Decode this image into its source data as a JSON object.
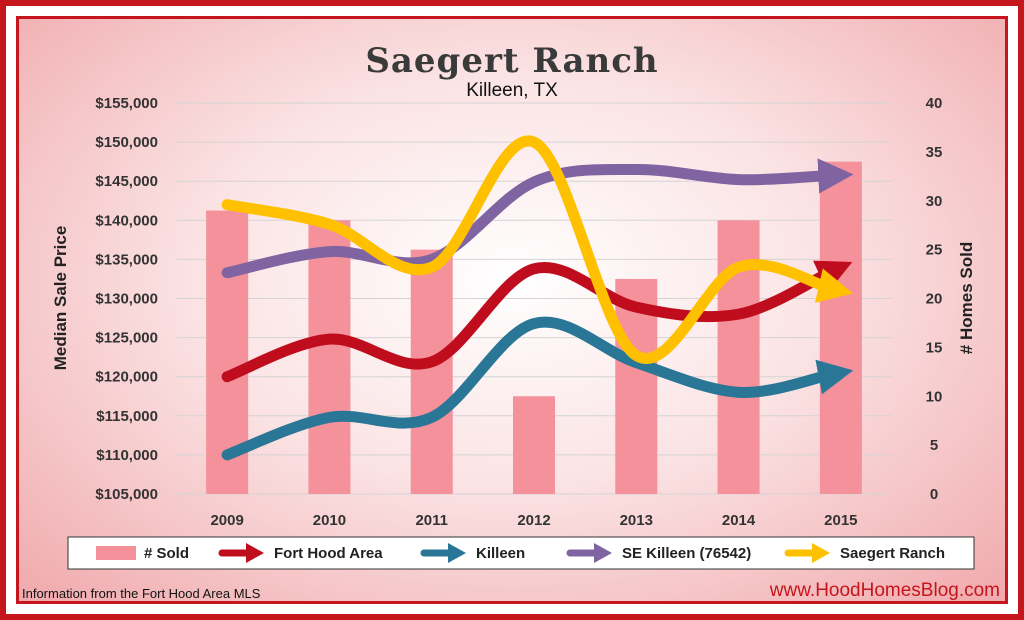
{
  "colors": {
    "sold": "#f4919a",
    "fort_hood": "#c00d1e",
    "killeen": "#2a7696",
    "se_killeen": "#8064a2",
    "saegert": "#ffc000",
    "border": "#c4161c"
  },
  "footer": {
    "source": "Information from the Fort Hood Area MLS",
    "site": "www.HoodHomesBlog.com"
  },
  "chart_data": {
    "type": "bar+line",
    "title": "Saegert Ranch",
    "subtitle": "Killeen, TX",
    "categories": [
      "2009",
      "2010",
      "2011",
      "2012",
      "2013",
      "2014",
      "2015"
    ],
    "ylabel": "Median Sale Price",
    "y2label": "# Homes Sold",
    "ylim": [
      105000,
      155000
    ],
    "y2lim": [
      0,
      40
    ],
    "yticks": [
      "$105,000",
      "$110,000",
      "$115,000",
      "$120,000",
      "$125,000",
      "$130,000",
      "$135,000",
      "$140,000",
      "$145,000",
      "$150,000",
      "$155,000"
    ],
    "y2ticks": [
      "0",
      "5",
      "10",
      "15",
      "20",
      "25",
      "30",
      "35",
      "40"
    ],
    "grid": true,
    "legend_position": "bottom",
    "bars": {
      "name": "# Sold",
      "axis": "right",
      "values": [
        29,
        28,
        25,
        10,
        22,
        28,
        34
      ]
    },
    "series": [
      {
        "name": "Fort Hood Area",
        "key": "fort_hood",
        "values": [
          120000,
          124800,
          121900,
          133800,
          128900,
          128000,
          134000
        ]
      },
      {
        "name": "Killeen",
        "key": "killeen",
        "values": [
          110000,
          114800,
          114800,
          126800,
          121800,
          118000,
          120500
        ]
      },
      {
        "name": "SE Killeen (76542)",
        "key": "se_killeen",
        "values": [
          133300,
          136000,
          135000,
          144900,
          146500,
          145200,
          145800
        ]
      },
      {
        "name": "Saegert Ranch",
        "key": "saegert",
        "values": [
          142000,
          139500,
          134000,
          150000,
          122700,
          134000,
          131000
        ]
      }
    ]
  }
}
